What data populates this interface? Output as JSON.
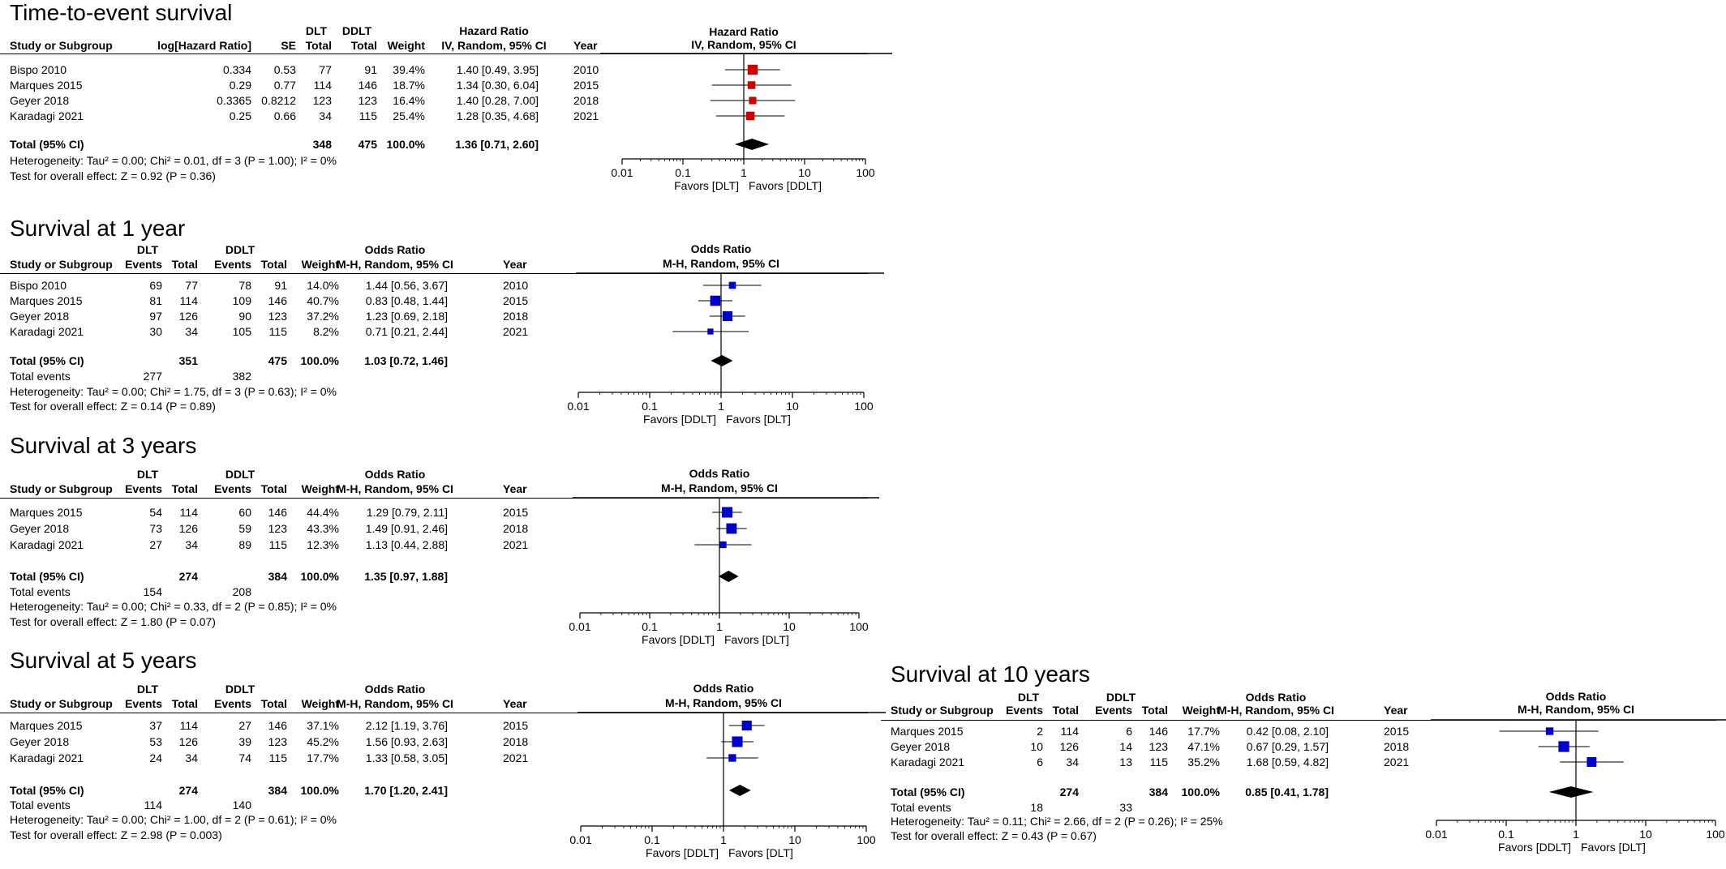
{
  "chart_data": [
    {
      "type": "forest",
      "title": "Time-to-event survival",
      "measure": "Hazard Ratio",
      "method": "IV, Random, 95% CI",
      "group_a": "DLT",
      "group_b": "DDLT",
      "headers": {
        "study": "Study or Subgroup",
        "loghr": "log[Hazard Ratio]",
        "se": "SE",
        "total": "Total",
        "weight": "Weight",
        "year": "Year"
      },
      "studies": [
        {
          "name": "Bispo 2010",
          "loghr": "0.334",
          "se": "0.53",
          "total_a": "77",
          "total_b": "91",
          "weight": "39.4%",
          "ci_text": "1.40 [0.49, 3.95]",
          "year": "2010",
          "est": 1.4,
          "lo": 0.49,
          "hi": 3.95,
          "w": 39.4
        },
        {
          "name": "Marques 2015",
          "loghr": "0.29",
          "se": "0.77",
          "total_a": "114",
          "total_b": "146",
          "weight": "18.7%",
          "ci_text": "1.34 [0.30, 6.04]",
          "year": "2015",
          "est": 1.34,
          "lo": 0.3,
          "hi": 6.04,
          "w": 18.7
        },
        {
          "name": "Geyer 2018",
          "loghr": "0.3365",
          "se": "0.8212",
          "total_a": "123",
          "total_b": "123",
          "weight": "16.4%",
          "ci_text": "1.40 [0.28, 7.00]",
          "year": "2018",
          "est": 1.4,
          "lo": 0.28,
          "hi": 7.0,
          "w": 16.4
        },
        {
          "name": "Karadagi 2021",
          "loghr": "0.25",
          "se": "0.66",
          "total_a": "34",
          "total_b": "115",
          "weight": "25.4%",
          "ci_text": "1.28 [0.35, 4.68]",
          "year": "2021",
          "est": 1.28,
          "lo": 0.35,
          "hi": 4.68,
          "w": 25.4
        }
      ],
      "total": {
        "label": "Total (95% CI)",
        "total_a": "348",
        "total_b": "475",
        "weight": "100.0%",
        "ci_text": "1.36 [0.71, 2.60]",
        "est": 1.36,
        "lo": 0.71,
        "hi": 2.6
      },
      "heterogeneity": "Heterogeneity: Tau² = 0.00; Chi² = 0.01, df = 3 (P = 1.00); I² = 0%",
      "overall_effect": "Test for overall effect: Z = 0.92 (P = 0.36)",
      "axis": {
        "scale": "log",
        "ticks": [
          0.01,
          0.1,
          1,
          10,
          100
        ],
        "tick_labels": [
          "0.01",
          "0.1",
          "1",
          "10",
          "100"
        ],
        "xlim": [
          0.01,
          100
        ]
      },
      "favors_left": "Favors [DLT]",
      "favors_right": "Favors [DDLT]",
      "marker_color": "#cc0000"
    },
    {
      "type": "forest",
      "title": "Survival at 1 year",
      "measure": "Odds Ratio",
      "method": "M-H, Random, 95% CI",
      "group_a": "DLT",
      "group_b": "DDLT",
      "headers": {
        "study": "Study or Subgroup",
        "events": "Events",
        "total": "Total",
        "weight": "Weight",
        "year": "Year"
      },
      "studies": [
        {
          "name": "Bispo 2010",
          "events_a": "69",
          "total_a": "77",
          "events_b": "78",
          "total_b": "91",
          "weight": "14.0%",
          "ci_text": "1.44 [0.56, 3.67]",
          "year": "2010",
          "est": 1.44,
          "lo": 0.56,
          "hi": 3.67,
          "w": 14.0
        },
        {
          "name": "Marques 2015",
          "events_a": "81",
          "total_a": "114",
          "events_b": "109",
          "total_b": "146",
          "weight": "40.7%",
          "ci_text": "0.83 [0.48, 1.44]",
          "year": "2015",
          "est": 0.83,
          "lo": 0.48,
          "hi": 1.44,
          "w": 40.7
        },
        {
          "name": "Geyer 2018",
          "events_a": "97",
          "total_a": "126",
          "events_b": "90",
          "total_b": "123",
          "weight": "37.2%",
          "ci_text": "1.23 [0.69, 2.18]",
          "year": "2018",
          "est": 1.23,
          "lo": 0.69,
          "hi": 2.18,
          "w": 37.2
        },
        {
          "name": "Karadagi 2021",
          "events_a": "30",
          "total_a": "34",
          "events_b": "105",
          "total_b": "115",
          "weight": "8.2%",
          "ci_text": "0.71 [0.21, 2.44]",
          "year": "2021",
          "est": 0.71,
          "lo": 0.21,
          "hi": 2.44,
          "w": 8.2
        }
      ],
      "total": {
        "label": "Total (95% CI)",
        "total_a": "351",
        "total_b": "475",
        "weight": "100.0%",
        "ci_text": "1.03 [0.72, 1.46]",
        "est": 1.03,
        "lo": 0.72,
        "hi": 1.46
      },
      "total_events": {
        "label": "Total events",
        "a": "277",
        "b": "382"
      },
      "heterogeneity": "Heterogeneity: Tau² = 0.00; Chi² = 1.75, df = 3 (P = 0.63); I² = 0%",
      "overall_effect": "Test for overall effect: Z = 0.14 (P = 0.89)",
      "axis": {
        "scale": "log",
        "ticks": [
          0.01,
          0.1,
          1,
          10,
          100
        ],
        "tick_labels": [
          "0.01",
          "0.1",
          "1",
          "10",
          "100"
        ],
        "xlim": [
          0.01,
          100
        ]
      },
      "favors_left": "Favors [DDLT]",
      "favors_right": "Favors [DLT]",
      "marker_color": "#0000cc"
    },
    {
      "type": "forest",
      "title": "Survival at 3 years",
      "measure": "Odds Ratio",
      "method": "M-H, Random, 95% CI",
      "group_a": "DLT",
      "group_b": "DDLT",
      "headers": {
        "study": "Study or Subgroup",
        "events": "Events",
        "total": "Total",
        "weight": "Weight",
        "year": "Year"
      },
      "studies": [
        {
          "name": "Marques 2015",
          "events_a": "54",
          "total_a": "114",
          "events_b": "60",
          "total_b": "146",
          "weight": "44.4%",
          "ci_text": "1.29 [0.79, 2.11]",
          "year": "2015",
          "est": 1.29,
          "lo": 0.79,
          "hi": 2.11,
          "w": 44.4
        },
        {
          "name": "Geyer 2018",
          "events_a": "73",
          "total_a": "126",
          "events_b": "59",
          "total_b": "123",
          "weight": "43.3%",
          "ci_text": "1.49 [0.91, 2.46]",
          "year": "2018",
          "est": 1.49,
          "lo": 0.91,
          "hi": 2.46,
          "w": 43.3
        },
        {
          "name": "Karadagi 2021",
          "events_a": "27",
          "total_a": "34",
          "events_b": "89",
          "total_b": "115",
          "weight": "12.3%",
          "ci_text": "1.13 [0.44, 2.88]",
          "year": "2021",
          "est": 1.13,
          "lo": 0.44,
          "hi": 2.88,
          "w": 12.3
        }
      ],
      "total": {
        "label": "Total (95% CI)",
        "total_a": "274",
        "total_b": "384",
        "weight": "100.0%",
        "ci_text": "1.35 [0.97, 1.88]",
        "est": 1.35,
        "lo": 0.97,
        "hi": 1.88
      },
      "total_events": {
        "label": "Total events",
        "a": "154",
        "b": "208"
      },
      "heterogeneity": "Heterogeneity: Tau² = 0.00; Chi² = 0.33, df = 2 (P = 0.85); I² = 0%",
      "overall_effect": "Test for overall effect: Z = 1.80 (P = 0.07)",
      "axis": {
        "scale": "log",
        "ticks": [
          0.01,
          0.1,
          1,
          10,
          100
        ],
        "tick_labels": [
          "0.01",
          "0.1",
          "1",
          "10",
          "100"
        ],
        "xlim": [
          0.01,
          100
        ]
      },
      "favors_left": "Favors [DDLT]",
      "favors_right": "Favors [DLT]",
      "marker_color": "#0000cc"
    },
    {
      "type": "forest",
      "title": "Survival at 5 years",
      "measure": "Odds Ratio",
      "method": "M-H, Random, 95% CI",
      "group_a": "DLT",
      "group_b": "DDLT",
      "headers": {
        "study": "Study or Subgroup",
        "events": "Events",
        "total": "Total",
        "weight": "Weight",
        "year": "Year"
      },
      "studies": [
        {
          "name": "Marques 2015",
          "events_a": "37",
          "total_a": "114",
          "events_b": "27",
          "total_b": "146",
          "weight": "37.1%",
          "ci_text": "2.12 [1.19, 3.76]",
          "year": "2015",
          "est": 2.12,
          "lo": 1.19,
          "hi": 3.76,
          "w": 37.1
        },
        {
          "name": "Geyer 2018",
          "events_a": "53",
          "total_a": "126",
          "events_b": "39",
          "total_b": "123",
          "weight": "45.2%",
          "ci_text": "1.56 [0.93, 2.63]",
          "year": "2018",
          "est": 1.56,
          "lo": 0.93,
          "hi": 2.63,
          "w": 45.2
        },
        {
          "name": "Karadagi 2021",
          "events_a": "24",
          "total_a": "34",
          "events_b": "74",
          "total_b": "115",
          "weight": "17.7%",
          "ci_text": "1.33 [0.58, 3.05]",
          "year": "2021",
          "est": 1.33,
          "lo": 0.58,
          "hi": 3.05,
          "w": 17.7
        }
      ],
      "total": {
        "label": "Total (95% CI)",
        "total_a": "274",
        "total_b": "384",
        "weight": "100.0%",
        "ci_text": "1.70 [1.20, 2.41]",
        "est": 1.7,
        "lo": 1.2,
        "hi": 2.41
      },
      "total_events": {
        "label": "Total events",
        "a": "114",
        "b": "140"
      },
      "heterogeneity": "Heterogeneity: Tau² = 0.00; Chi² = 1.00, df = 2 (P = 0.61); I² = 0%",
      "overall_effect": "Test for overall effect: Z = 2.98 (P = 0.003)",
      "axis": {
        "scale": "log",
        "ticks": [
          0.01,
          0.1,
          1,
          10,
          100
        ],
        "tick_labels": [
          "0.01",
          "0.1",
          "1",
          "10",
          "100"
        ],
        "xlim": [
          0.01,
          100
        ]
      },
      "favors_left": "Favors [DDLT]",
      "favors_right": "Favors [DLT]",
      "marker_color": "#0000cc"
    },
    {
      "type": "forest",
      "title": "Survival at 10 years",
      "measure": "Odds Ratio",
      "method": "M-H, Random, 95% CI",
      "group_a": "DLT",
      "group_b": "DDLT",
      "headers": {
        "study": "Study or Subgroup",
        "events": "Events",
        "total": "Total",
        "weight": "Weight",
        "year": "Year"
      },
      "studies": [
        {
          "name": "Marques 2015",
          "events_a": "2",
          "total_a": "114",
          "events_b": "6",
          "total_b": "146",
          "weight": "17.7%",
          "ci_text": "0.42 [0.08, 2.10]",
          "year": "2015",
          "est": 0.42,
          "lo": 0.08,
          "hi": 2.1,
          "w": 17.7
        },
        {
          "name": "Geyer 2018",
          "events_a": "10",
          "total_a": "126",
          "events_b": "14",
          "total_b": "123",
          "weight": "47.1%",
          "ci_text": "0.67 [0.29, 1.57]",
          "year": "2018",
          "est": 0.67,
          "lo": 0.29,
          "hi": 1.57,
          "w": 47.1
        },
        {
          "name": "Karadagi 2021",
          "events_a": "6",
          "total_a": "34",
          "events_b": "13",
          "total_b": "115",
          "weight": "35.2%",
          "ci_text": "1.68 [0.59, 4.82]",
          "year": "2021",
          "est": 1.68,
          "lo": 0.59,
          "hi": 4.82,
          "w": 35.2
        }
      ],
      "total": {
        "label": "Total (95% CI)",
        "total_a": "274",
        "total_b": "384",
        "weight": "100.0%",
        "ci_text": "0.85 [0.41, 1.78]",
        "est": 0.85,
        "lo": 0.41,
        "hi": 1.78
      },
      "total_events": {
        "label": "Total events",
        "a": "18",
        "b": "33"
      },
      "heterogeneity": "Heterogeneity: Tau² = 0.11; Chi² = 2.66, df = 2 (P = 0.26); I² = 25%",
      "overall_effect": "Test for overall effect: Z = 0.43 (P = 0.67)",
      "axis": {
        "scale": "log",
        "ticks": [
          0.01,
          0.1,
          1,
          10,
          100
        ],
        "tick_labels": [
          "0.01",
          "0.1",
          "1",
          "10",
          "100"
        ],
        "xlim": [
          0.01,
          100
        ]
      },
      "favors_left": "Favors [DDLT]",
      "favors_right": "Favors [DLT]",
      "marker_color": "#0000cc"
    }
  ]
}
